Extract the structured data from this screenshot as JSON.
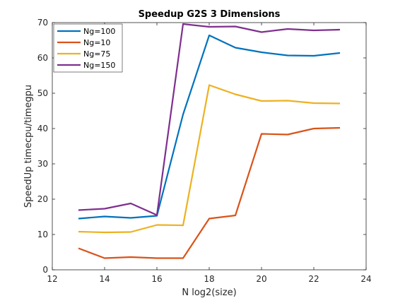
{
  "chart_data": {
    "type": "line",
    "title": "Speedup G2S 3 Dimensions",
    "xlabel": "N log2(size)",
    "ylabel": "SpeedUp timecpu/timegpu",
    "xlim": [
      12,
      24
    ],
    "ylim": [
      0,
      70
    ],
    "xticks": [
      12,
      14,
      16,
      18,
      20,
      22,
      24
    ],
    "yticks": [
      0,
      10,
      20,
      30,
      40,
      50,
      60,
      70
    ],
    "grid": false,
    "legend_position": "top-left",
    "x": [
      13,
      14,
      15,
      16,
      17,
      18,
      19,
      20,
      21,
      22,
      23
    ],
    "series": [
      {
        "name": "Ng=100",
        "color": "#0072BD",
        "values": [
          14.5,
          15.1,
          14.7,
          15.3,
          44.0,
          66.4,
          62.9,
          61.6,
          60.7,
          60.6,
          61.4
        ]
      },
      {
        "name": "Ng=10",
        "color": "#D95319",
        "values": [
          6.1,
          3.3,
          3.6,
          3.3,
          3.3,
          14.5,
          15.4,
          38.5,
          38.3,
          40.0,
          40.2
        ]
      },
      {
        "name": "Ng=75",
        "color": "#EDB120",
        "values": [
          10.8,
          10.6,
          10.7,
          12.7,
          12.6,
          52.3,
          49.7,
          47.8,
          47.9,
          47.2,
          47.1
        ]
      },
      {
        "name": "Ng=150",
        "color": "#7E2F8E",
        "values": [
          16.9,
          17.3,
          18.8,
          15.5,
          69.6,
          68.8,
          68.9,
          67.3,
          68.2,
          67.8,
          68.0
        ]
      }
    ]
  }
}
